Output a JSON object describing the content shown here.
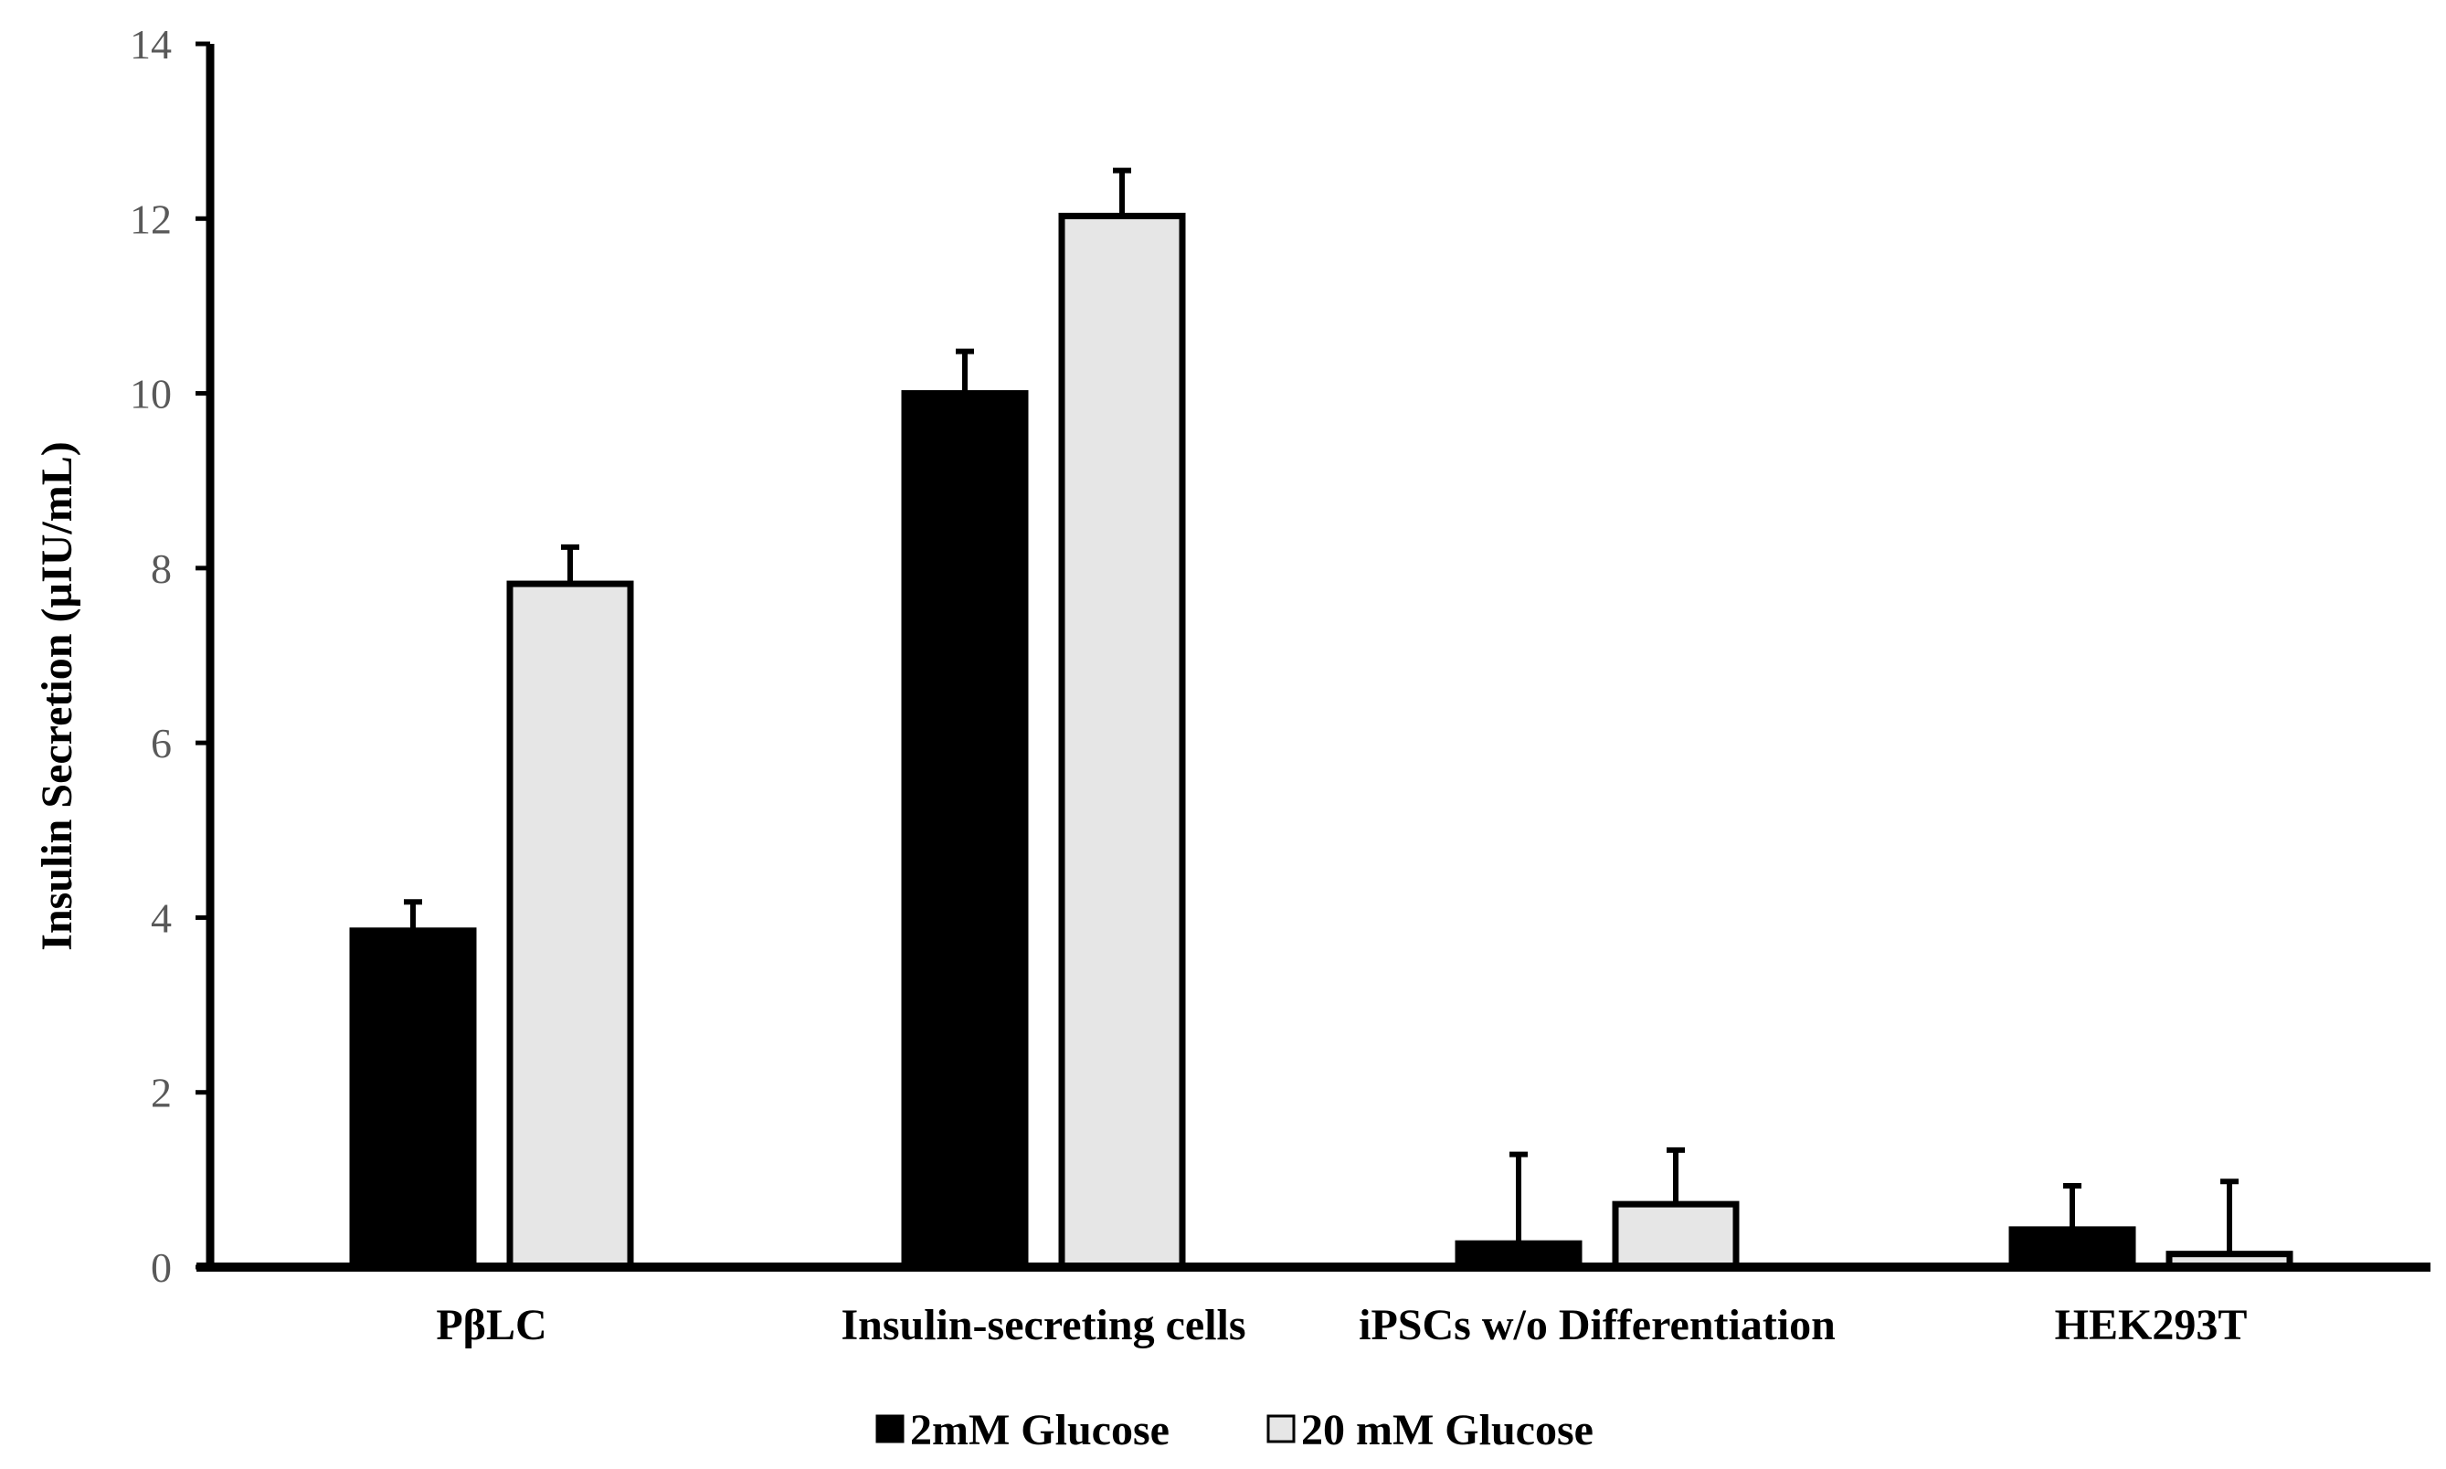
{
  "chart_data": {
    "type": "bar",
    "ylabel": "Insulin Secretion (µIU/mL)",
    "xlabel": "",
    "ylim": [
      0,
      14
    ],
    "yticks": [
      0,
      2,
      4,
      6,
      8,
      10,
      12,
      14
    ],
    "grid": false,
    "legend_position": "bottom",
    "categories": [
      "PβLC",
      "Insulin-secreting cells",
      "iPSCs w/o Differentiation",
      "HEK293T"
    ],
    "series": [
      {
        "name": "2mM Glucose",
        "color": "#000000",
        "values": [
          3.85,
          10.0,
          0.27,
          0.43
        ],
        "errors": [
          0.33,
          0.48,
          1.02,
          0.5
        ]
      },
      {
        "name": "20 mM Glucose",
        "color": "#e6e6e6",
        "values": [
          7.82,
          12.03,
          0.72,
          0.15
        ],
        "errors": [
          0.42,
          0.52,
          0.62,
          0.83
        ]
      }
    ]
  }
}
